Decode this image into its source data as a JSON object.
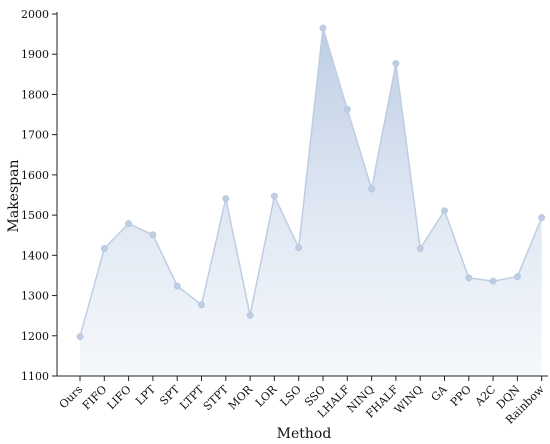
{
  "chart_data": {
    "type": "area",
    "title": "",
    "xlabel": "Method",
    "ylabel": "Makespan",
    "ylim": [
      1100,
      2000
    ],
    "yticks": [
      1100,
      1200,
      1300,
      1400,
      1500,
      1600,
      1700,
      1800,
      1900,
      2000
    ],
    "grid": false,
    "legend": "none",
    "categories": [
      "Ours",
      "FIFO",
      "LIFO",
      "LPT",
      "SPT",
      "LTPT",
      "STPT",
      "MOR",
      "LOR",
      "LSO",
      "SSO",
      "LHALF",
      "NINQ",
      "FHALF",
      "WINQ",
      "GA",
      "PPO",
      "A2C",
      "DQN",
      "Rainbow"
    ],
    "values": [
      1198,
      1417,
      1479,
      1451,
      1324,
      1277,
      1541,
      1251,
      1547,
      1419,
      1965,
      1763,
      1565,
      1877,
      1417,
      1511,
      1344,
      1336,
      1347,
      1494
    ],
    "colors": {
      "area_top": "#b9cbe3",
      "area_bottom": "#eef3fa",
      "line": "#bfcde3",
      "point": "#bdcde4"
    }
  }
}
